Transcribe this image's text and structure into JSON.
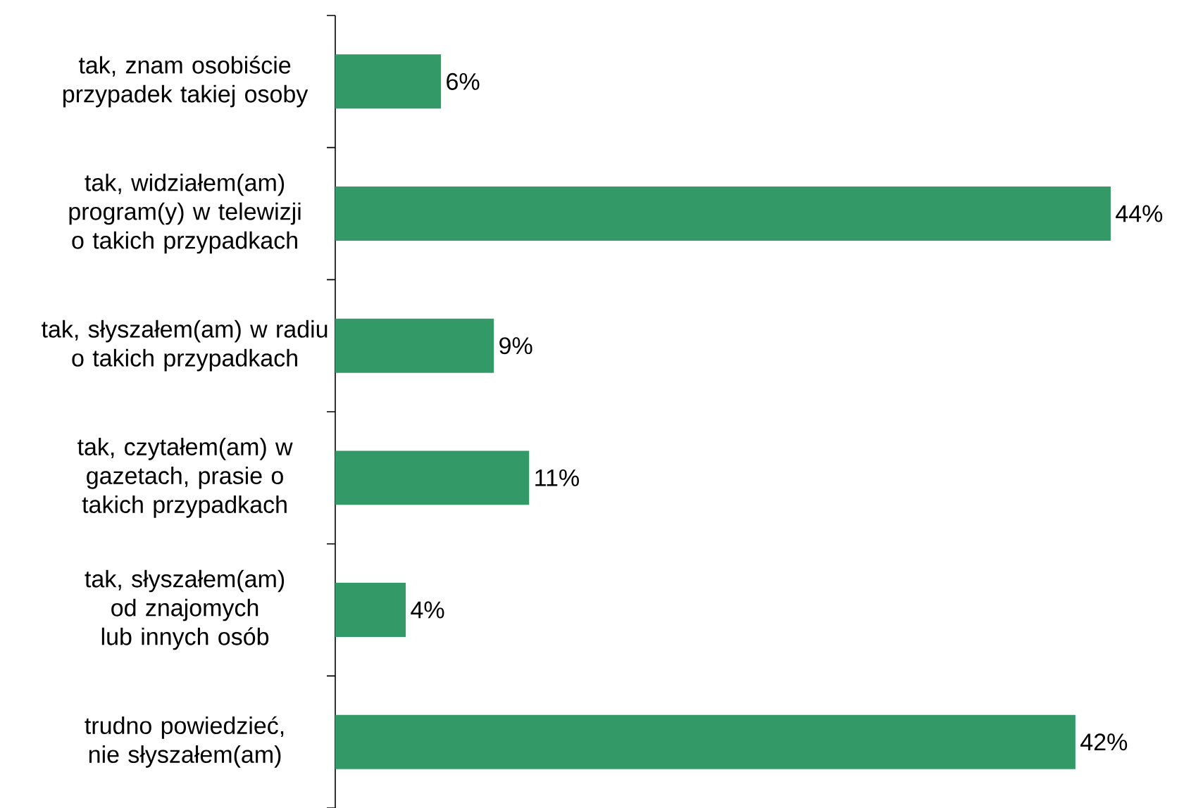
{
  "chart_data": {
    "type": "bar",
    "orientation": "horizontal",
    "categories": [
      "tak, znam osobiście przypadek takiej osoby",
      "tak, widziałem(am) program(y) w telewizji o takich przypadkach",
      "tak, słyszałem(am) w radiu o takich przypadkach",
      "tak, czytałem(am) w gazetach, prasie o takich przypadkach",
      "tak, słyszałem(am) od znajomych lub innych osób",
      "trudno powiedzieć, nie słyszałem(am)"
    ],
    "values": [
      6,
      44,
      9,
      11,
      4,
      42
    ],
    "value_labels": [
      "6%",
      "44%",
      "9%",
      "11%",
      "4%",
      "42%"
    ],
    "color": "#339966"
  }
}
